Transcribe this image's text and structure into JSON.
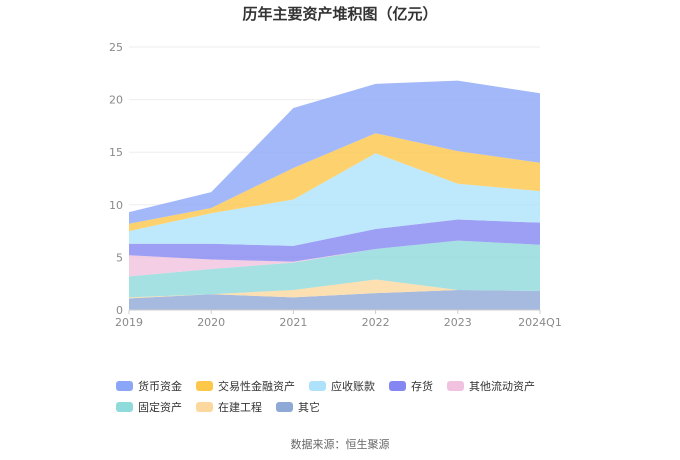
{
  "title": "历年主要资产堆积图（亿元）",
  "source": "数据来源：恒生聚源",
  "chart_data": {
    "type": "area",
    "stacked": true,
    "title": "历年主要资产堆积图（亿元）",
    "x": [
      "2019",
      "2020",
      "2021",
      "2022",
      "2023",
      "2024Q1"
    ],
    "ylim": [
      0,
      25
    ],
    "yticks": [
      "0",
      "5",
      "10",
      "15",
      "20",
      "25"
    ],
    "grid": true,
    "legend_position": "bottom",
    "series": [
      {
        "name": "其它",
        "color": "#8FA9D6",
        "values": [
          1.1,
          1.5,
          1.2,
          1.6,
          1.9,
          1.8
        ]
      },
      {
        "name": "在建工程",
        "color": "#FDD89E",
        "values": [
          0.1,
          0.0,
          0.7,
          1.3,
          0.0,
          0.0
        ]
      },
      {
        "name": "固定资产",
        "color": "#8FDADB",
        "values": [
          2.0,
          2.4,
          2.6,
          2.9,
          4.7,
          4.4
        ]
      },
      {
        "name": "其他流动资产",
        "color": "#F0C2DF",
        "values": [
          2.0,
          0.9,
          0.1,
          0.0,
          0.0,
          0.0
        ]
      },
      {
        "name": "存货",
        "color": "#8487F2",
        "values": [
          1.1,
          1.5,
          1.5,
          1.9,
          2.0,
          2.1
        ]
      },
      {
        "name": "应收账款",
        "color": "#AEE2FA",
        "values": [
          1.2,
          2.9,
          4.4,
          7.2,
          3.4,
          3.0
        ]
      },
      {
        "name": "交易性金融资产",
        "color": "#FDC74A",
        "values": [
          0.7,
          0.5,
          3.0,
          1.9,
          3.1,
          2.7
        ]
      },
      {
        "name": "货币资金",
        "color": "#8BA6F7",
        "values": [
          1.1,
          1.5,
          5.7,
          4.7,
          6.7,
          6.6
        ]
      }
    ],
    "legend_order": [
      "货币资金",
      "交易性金融资产",
      "应收账款",
      "存货",
      "其他流动资产",
      "固定资产",
      "在建工程",
      "其它"
    ]
  }
}
